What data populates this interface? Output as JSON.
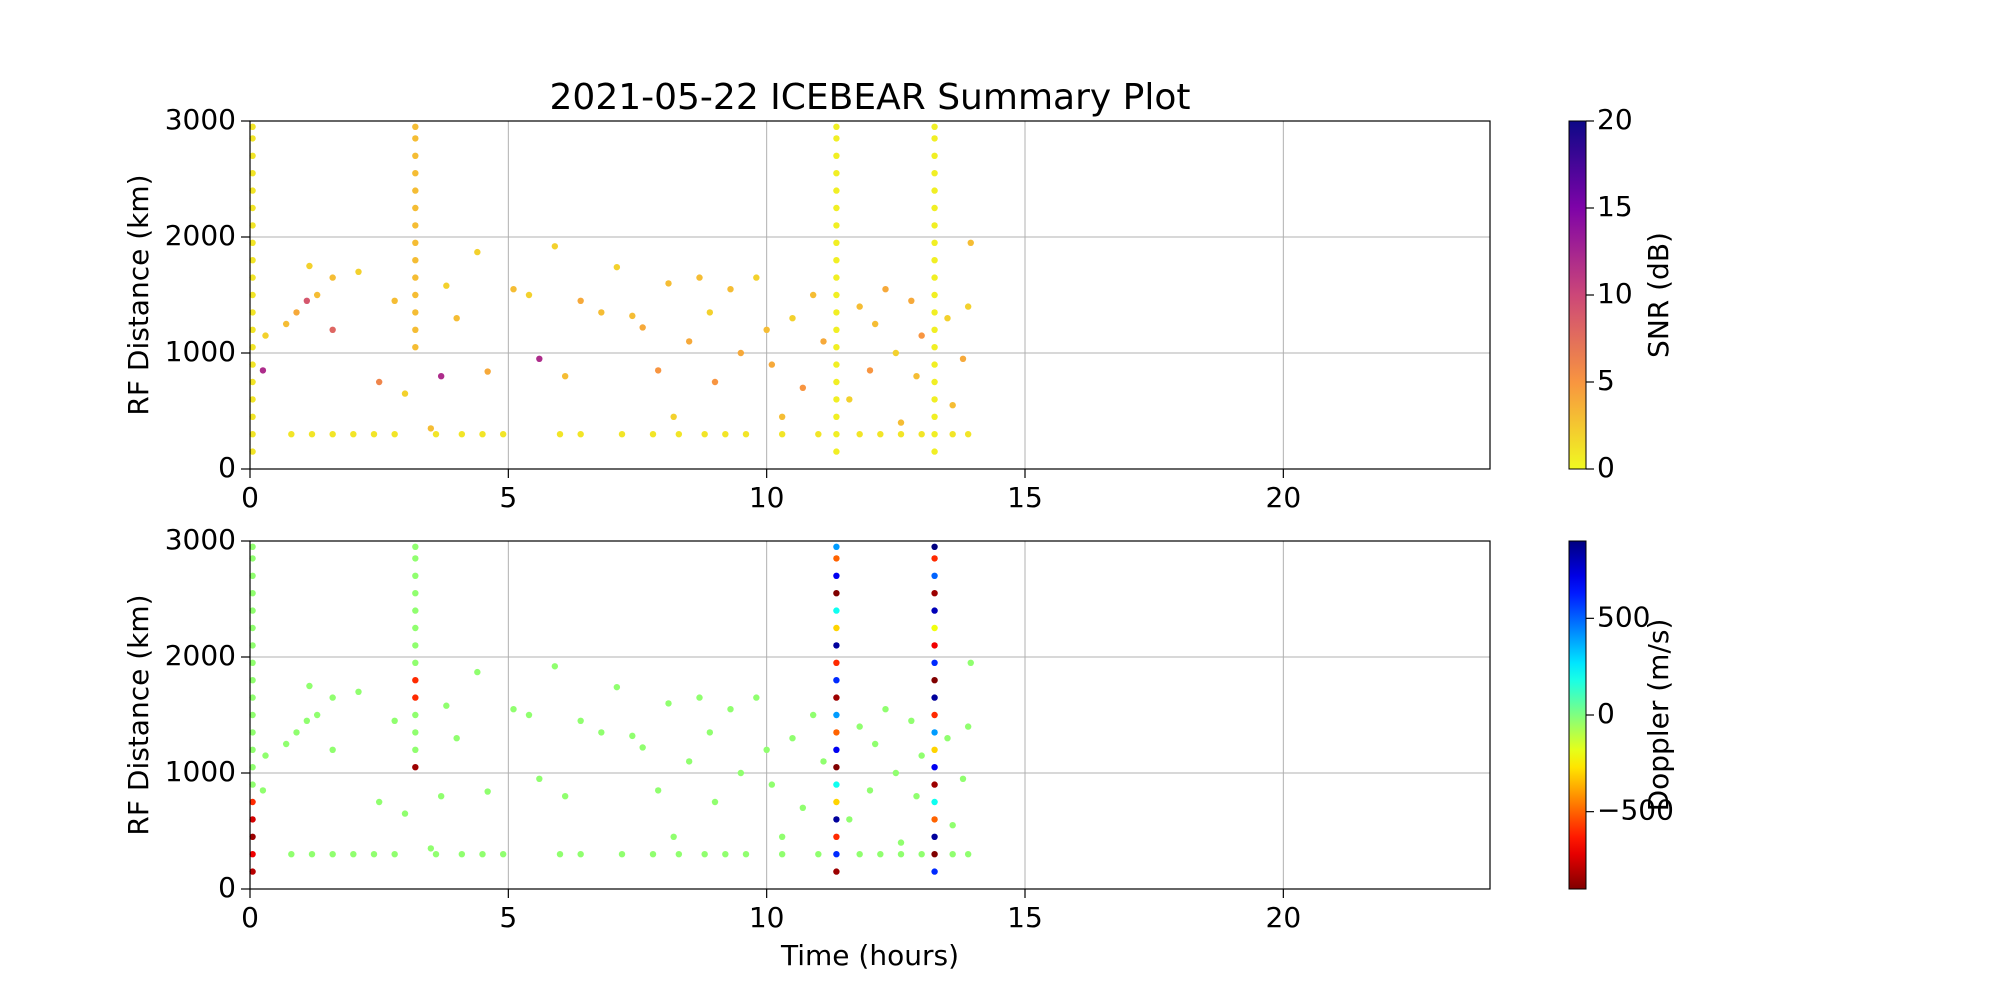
{
  "chart_data": [
    {
      "type": "scatter",
      "title": "2021-05-22 ICEBEAR Summary Plot",
      "ylabel": "RF Distance (km)",
      "xlim": [
        0,
        24
      ],
      "xticks": [
        0,
        5,
        10,
        15,
        20
      ],
      "ylim": [
        0,
        3000
      ],
      "yticks": [
        0,
        1000,
        2000,
        3000
      ],
      "grid": true,
      "colorbar": {
        "label": "SNR (dB)",
        "lim": [
          0,
          20
        ],
        "ticks": [
          0,
          5,
          10,
          15,
          20
        ],
        "colormap": "plasma_r"
      },
      "x": [
        0.05,
        0.05,
        0.05,
        0.05,
        0.05,
        0.05,
        0.05,
        0.05,
        0.05,
        0.05,
        0.05,
        0.05,
        0.05,
        0.05,
        0.05,
        0.05,
        0.05,
        0.05,
        0.05,
        0.05,
        3.2,
        3.2,
        3.2,
        3.2,
        3.2,
        3.2,
        3.2,
        3.2,
        3.2,
        3.2,
        3.2,
        3.2,
        3.2,
        3.2,
        11.35,
        11.35,
        11.35,
        11.35,
        11.35,
        11.35,
        11.35,
        11.35,
        11.35,
        11.35,
        11.35,
        11.35,
        11.35,
        11.35,
        11.35,
        11.35,
        11.35,
        11.35,
        11.35,
        11.35,
        13.25,
        13.25,
        13.25,
        13.25,
        13.25,
        13.25,
        13.25,
        13.25,
        13.25,
        13.25,
        13.25,
        13.25,
        13.25,
        13.25,
        13.25,
        13.25,
        13.25,
        13.25,
        13.25,
        13.25,
        0.8,
        1.2,
        1.6,
        2,
        2.4,
        2.8,
        3.6,
        4.1,
        4.5,
        4.9,
        6,
        6.4,
        7.2,
        7.8,
        8.3,
        8.8,
        9.2,
        9.6,
        10.3,
        11,
        11.8,
        12.2,
        12.6,
        13,
        13.6,
        13.9,
        0.25,
        0.3,
        0.7,
        0.9,
        1.1,
        1.15,
        1.3,
        1.6,
        1.6,
        2.1,
        2.5,
        2.8,
        3,
        3.5,
        3.7,
        3.8,
        4,
        4.4,
        4.6,
        5.1,
        5.4,
        5.6,
        5.9,
        6.1,
        6.4,
        6.8,
        7.1,
        7.4,
        7.6,
        7.9,
        8.1,
        8.2,
        8.5,
        8.7,
        8.9,
        9,
        9.3,
        9.5,
        9.8,
        10,
        10.1,
        10.3,
        10.5,
        10.7,
        10.9,
        11.1,
        11.6,
        11.8,
        12,
        12.1,
        12.3,
        12.5,
        12.6,
        12.8,
        12.9,
        13,
        13.5,
        13.6,
        13.8,
        13.9,
        13.95
      ],
      "values": [
        150,
        300,
        450,
        600,
        750,
        900,
        1050,
        1200,
        1350,
        1500,
        1650,
        1800,
        1950,
        2100,
        2250,
        2400,
        2550,
        2700,
        2850,
        2950,
        1050,
        1200,
        1350,
        1500,
        1650,
        1800,
        1950,
        2100,
        2250,
        2400,
        2550,
        2700,
        2850,
        2950,
        150,
        300,
        450,
        600,
        750,
        900,
        1050,
        1200,
        1350,
        1500,
        1650,
        1800,
        1950,
        2100,
        2250,
        2400,
        2550,
        2700,
        2850,
        2950,
        150,
        300,
        450,
        600,
        750,
        900,
        1050,
        1200,
        1350,
        1500,
        1650,
        1800,
        1950,
        2100,
        2250,
        2400,
        2550,
        2700,
        2850,
        2950,
        300,
        300,
        300,
        300,
        300,
        300,
        300,
        300,
        300,
        300,
        300,
        300,
        300,
        300,
        300,
        300,
        300,
        300,
        300,
        300,
        300,
        300,
        300,
        300,
        300,
        300,
        850,
        1150,
        1250,
        1350,
        1450,
        1750,
        1500,
        1650,
        1200,
        1700,
        750,
        1450,
        650,
        350,
        800,
        1580,
        1300,
        1870,
        840,
        1550,
        1500,
        950,
        1920,
        800,
        1450,
        1350,
        1740,
        1320,
        1220,
        850,
        1600,
        450,
        1100,
        1650,
        1350,
        750,
        1550,
        1000,
        1650,
        1200,
        900,
        450,
        1300,
        700,
        1500,
        1100,
        600,
        1400,
        850,
        1250,
        1550,
        1000,
        400,
        1450,
        800,
        1150,
        1300,
        550,
        950,
        1400,
        1950
      ],
      "color_values": [
        1,
        1,
        1,
        1,
        1,
        1,
        1,
        1,
        1,
        1,
        1,
        1,
        1,
        1,
        1,
        1,
        1,
        1,
        1,
        1,
        3,
        3,
        3,
        3,
        3,
        3,
        3,
        3,
        3,
        3,
        3,
        3,
        3,
        3,
        0.5,
        0.5,
        0.5,
        0.5,
        0.5,
        0.5,
        0.5,
        0.5,
        0.5,
        0.5,
        0.5,
        0.5,
        0.5,
        0.5,
        0.5,
        0.5,
        0.5,
        0.5,
        0.5,
        0.5,
        0.5,
        0.5,
        0.5,
        0.5,
        0.5,
        0.5,
        0.5,
        0.5,
        0.5,
        0.5,
        0.5,
        0.5,
        0.5,
        0.5,
        0.5,
        0.5,
        0.5,
        0.5,
        0.5,
        0.5,
        1,
        1,
        1,
        1,
        1,
        1,
        1,
        1,
        1,
        1,
        1,
        1,
        1,
        1,
        1,
        1,
        1,
        1,
        1,
        1,
        1,
        1,
        1,
        1,
        1,
        1,
        12,
        2,
        3,
        4,
        9,
        2,
        3,
        3,
        8,
        2,
        6,
        3,
        2,
        3,
        12,
        2,
        3,
        2,
        4,
        3,
        2,
        12,
        2,
        3,
        4,
        3,
        2,
        3,
        4,
        5,
        3,
        2,
        4,
        3,
        2,
        5,
        3,
        4,
        2,
        3,
        4,
        3,
        2,
        5,
        3,
        4,
        2,
        3,
        5,
        3,
        4,
        2,
        3,
        4,
        3,
        5,
        2,
        3,
        4,
        2,
        3
      ]
    },
    {
      "type": "scatter",
      "ylabel": "RF Distance (km)",
      "xlabel": "Time (hours)",
      "xlim": [
        0,
        24
      ],
      "xticks": [
        0,
        5,
        10,
        15,
        20
      ],
      "ylim": [
        0,
        3000
      ],
      "yticks": [
        0,
        1000,
        2000,
        3000
      ],
      "grid": true,
      "colorbar": {
        "label": "Doppler (m/s)",
        "lim": [
          -900,
          900
        ],
        "ticks": [
          {
            "value": -500,
            "label": "−500"
          },
          0,
          500
        ],
        "colormap": "jet_r"
      },
      "x": [
        0.05,
        0.05,
        0.05,
        0.05,
        0.05,
        0.05,
        0.05,
        0.05,
        0.05,
        0.05,
        0.05,
        0.05,
        0.05,
        0.05,
        0.05,
        0.05,
        0.05,
        0.05,
        0.05,
        0.05,
        3.2,
        3.2,
        3.2,
        3.2,
        3.2,
        3.2,
        3.2,
        3.2,
        3.2,
        3.2,
        3.2,
        3.2,
        3.2,
        3.2,
        11.35,
        11.35,
        11.35,
        11.35,
        11.35,
        11.35,
        11.35,
        11.35,
        11.35,
        11.35,
        11.35,
        11.35,
        11.35,
        11.35,
        11.35,
        11.35,
        11.35,
        11.35,
        11.35,
        11.35,
        13.25,
        13.25,
        13.25,
        13.25,
        13.25,
        13.25,
        13.25,
        13.25,
        13.25,
        13.25,
        13.25,
        13.25,
        13.25,
        13.25,
        13.25,
        13.25,
        13.25,
        13.25,
        13.25,
        13.25,
        0.8,
        1.2,
        1.6,
        2,
        2.4,
        2.8,
        3.6,
        4.1,
        4.5,
        4.9,
        6,
        6.4,
        7.2,
        7.8,
        8.3,
        8.8,
        9.2,
        9.6,
        10.3,
        11,
        11.8,
        12.2,
        12.6,
        13,
        13.6,
        13.9,
        0.25,
        0.3,
        0.7,
        0.9,
        1.1,
        1.15,
        1.3,
        1.6,
        1.6,
        2.1,
        2.5,
        2.8,
        3,
        3.5,
        3.7,
        3.8,
        4,
        4.4,
        4.6,
        5.1,
        5.4,
        5.6,
        5.9,
        6.1,
        6.4,
        6.8,
        7.1,
        7.4,
        7.6,
        7.9,
        8.1,
        8.2,
        8.5,
        8.7,
        8.9,
        9,
        9.3,
        9.5,
        9.8,
        10,
        10.1,
        10.3,
        10.5,
        10.7,
        10.9,
        11.1,
        11.6,
        11.8,
        12,
        12.1,
        12.3,
        12.5,
        12.6,
        12.8,
        12.9,
        13,
        13.5,
        13.6,
        13.8,
        13.9,
        13.95
      ],
      "values": [
        150,
        300,
        450,
        600,
        750,
        900,
        1050,
        1200,
        1350,
        1500,
        1650,
        1800,
        1950,
        2100,
        2250,
        2400,
        2550,
        2700,
        2850,
        2950,
        1050,
        1200,
        1350,
        1500,
        1650,
        1800,
        1950,
        2100,
        2250,
        2400,
        2550,
        2700,
        2850,
        2950,
        150,
        300,
        450,
        600,
        750,
        900,
        1050,
        1200,
        1350,
        1500,
        1650,
        1800,
        1950,
        2100,
        2250,
        2400,
        2550,
        2700,
        2850,
        2950,
        150,
        300,
        450,
        600,
        750,
        900,
        1050,
        1200,
        1350,
        1500,
        1650,
        1800,
        1950,
        2100,
        2250,
        2400,
        2550,
        2700,
        2850,
        2950,
        300,
        300,
        300,
        300,
        300,
        300,
        300,
        300,
        300,
        300,
        300,
        300,
        300,
        300,
        300,
        300,
        300,
        300,
        300,
        300,
        300,
        300,
        300,
        300,
        300,
        300,
        850,
        1150,
        1250,
        1350,
        1450,
        1750,
        1500,
        1650,
        1200,
        1700,
        750,
        1450,
        650,
        350,
        800,
        1580,
        1300,
        1870,
        840,
        1550,
        1500,
        950,
        1920,
        800,
        1450,
        1350,
        1740,
        1320,
        1220,
        850,
        1600,
        450,
        1100,
        1650,
        1350,
        750,
        1550,
        1000,
        1650,
        1200,
        900,
        450,
        1300,
        700,
        1500,
        1100,
        600,
        1400,
        850,
        1250,
        1550,
        1000,
        400,
        1450,
        800,
        1150,
        1300,
        550,
        950,
        1400,
        1950
      ],
      "color_values": [
        -800,
        -700,
        -850,
        -750,
        -600,
        -30,
        -30,
        -30,
        -30,
        -30,
        -30,
        -30,
        -30,
        -30,
        -30,
        -30,
        -30,
        -30,
        -30,
        -30,
        -850,
        -30,
        -30,
        -30,
        -600,
        -600,
        -30,
        -30,
        -30,
        -30,
        -30,
        -30,
        -30,
        -30,
        -850,
        600,
        -600,
        850,
        -300,
        200,
        -900,
        700,
        -500,
        400,
        -850,
        600,
        -600,
        850,
        -300,
        200,
        -900,
        700,
        -500,
        400,
        600,
        -900,
        850,
        -500,
        200,
        -850,
        700,
        -300,
        400,
        -600,
        850,
        -900,
        600,
        -700,
        -200,
        800,
        -850,
        500,
        -600,
        900,
        -30,
        -30,
        -30,
        -30,
        -30,
        -30,
        -30,
        -30,
        -30,
        -30,
        -30,
        -30,
        -30,
        -30,
        -30,
        -30,
        -30,
        -30,
        -30,
        -30,
        -30,
        -30,
        -30,
        -30,
        -30,
        -30,
        -30,
        -30,
        -30,
        -30,
        -30,
        -30,
        -30,
        -30,
        -30,
        -30,
        -30,
        -30,
        -30,
        -30,
        -30,
        -30,
        -30,
        -30,
        -30,
        -30,
        -30,
        -30,
        -30,
        -30,
        -30,
        -30,
        -30,
        -30,
        -30,
        -30,
        -30,
        -30,
        -30,
        -30,
        -30,
        -30,
        -30,
        -30,
        -30,
        -30,
        -30,
        -30,
        -30,
        -30,
        -30,
        -30,
        -30,
        -30,
        -30,
        -30,
        -30,
        -30,
        -30,
        -30,
        -30,
        -30,
        -30,
        -30,
        -30,
        -30,
        -30
      ]
    }
  ]
}
